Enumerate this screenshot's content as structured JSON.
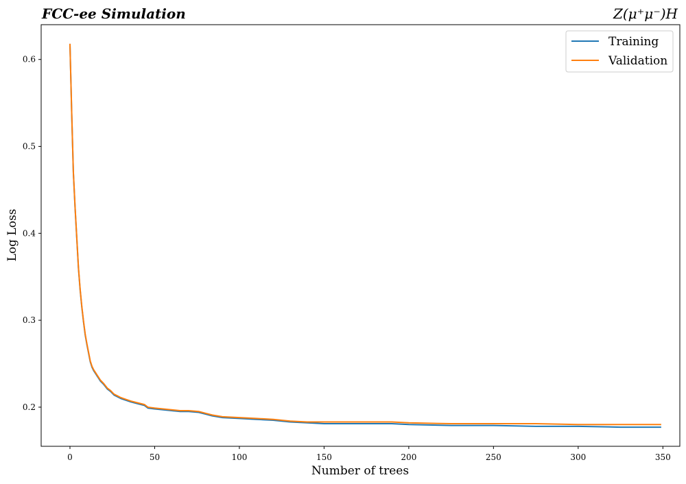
{
  "chart_data": {
    "type": "line",
    "title_left": "FCC-ee Simulation",
    "title_right": "Z(μ⁺μ⁻)H",
    "xlabel": "Number of trees",
    "ylabel": "Log Loss",
    "xlim": [
      -17,
      360
    ],
    "ylim": [
      0.155,
      0.64
    ],
    "xticks": [
      0,
      50,
      100,
      150,
      200,
      250,
      300,
      350
    ],
    "yticks": [
      0.2,
      0.3,
      0.4,
      0.5,
      0.6
    ],
    "legend_position": "top-right",
    "grid": false,
    "series": [
      {
        "name": "Training",
        "color": "#1f77b4",
        "x": [
          0,
          1,
          2,
          3,
          4,
          5,
          6,
          7,
          8,
          9,
          10,
          11,
          12,
          13,
          14,
          15,
          16,
          17,
          18,
          20,
          22,
          24,
          26,
          28,
          30,
          33,
          36,
          40,
          44,
          46,
          50,
          55,
          60,
          65,
          70,
          76,
          80,
          84,
          90,
          100,
          110,
          120,
          130,
          140,
          150,
          175,
          190,
          200,
          225,
          250,
          275,
          300,
          325,
          349
        ],
        "values": [
          0.618,
          0.54,
          0.47,
          0.43,
          0.395,
          0.36,
          0.335,
          0.315,
          0.298,
          0.283,
          0.272,
          0.262,
          0.252,
          0.246,
          0.242,
          0.239,
          0.236,
          0.233,
          0.23,
          0.226,
          0.221,
          0.218,
          0.214,
          0.212,
          0.21,
          0.208,
          0.206,
          0.204,
          0.202,
          0.199,
          0.198,
          0.197,
          0.196,
          0.195,
          0.195,
          0.194,
          0.192,
          0.19,
          0.188,
          0.187,
          0.186,
          0.185,
          0.183,
          0.182,
          0.181,
          0.181,
          0.181,
          0.18,
          0.179,
          0.179,
          0.178,
          0.178,
          0.177,
          0.177
        ]
      },
      {
        "name": "Validation",
        "color": "#ff7f0e",
        "x": [
          0,
          1,
          2,
          3,
          4,
          5,
          6,
          7,
          8,
          9,
          10,
          11,
          12,
          13,
          14,
          15,
          16,
          17,
          18,
          20,
          22,
          24,
          26,
          28,
          30,
          33,
          36,
          40,
          44,
          46,
          50,
          55,
          60,
          65,
          70,
          76,
          80,
          84,
          90,
          100,
          110,
          120,
          130,
          140,
          150,
          175,
          190,
          200,
          225,
          250,
          275,
          300,
          325,
          349
        ],
        "values": [
          0.618,
          0.541,
          0.471,
          0.431,
          0.396,
          0.361,
          0.336,
          0.316,
          0.299,
          0.284,
          0.273,
          0.263,
          0.253,
          0.247,
          0.243,
          0.24,
          0.237,
          0.234,
          0.231,
          0.227,
          0.222,
          0.219,
          0.215,
          0.213,
          0.211,
          0.209,
          0.207,
          0.205,
          0.203,
          0.2,
          0.199,
          0.198,
          0.197,
          0.196,
          0.196,
          0.195,
          0.193,
          0.191,
          0.189,
          0.188,
          0.187,
          0.186,
          0.184,
          0.183,
          0.183,
          0.183,
          0.183,
          0.182,
          0.181,
          0.181,
          0.181,
          0.18,
          0.18,
          0.18
        ]
      }
    ]
  }
}
